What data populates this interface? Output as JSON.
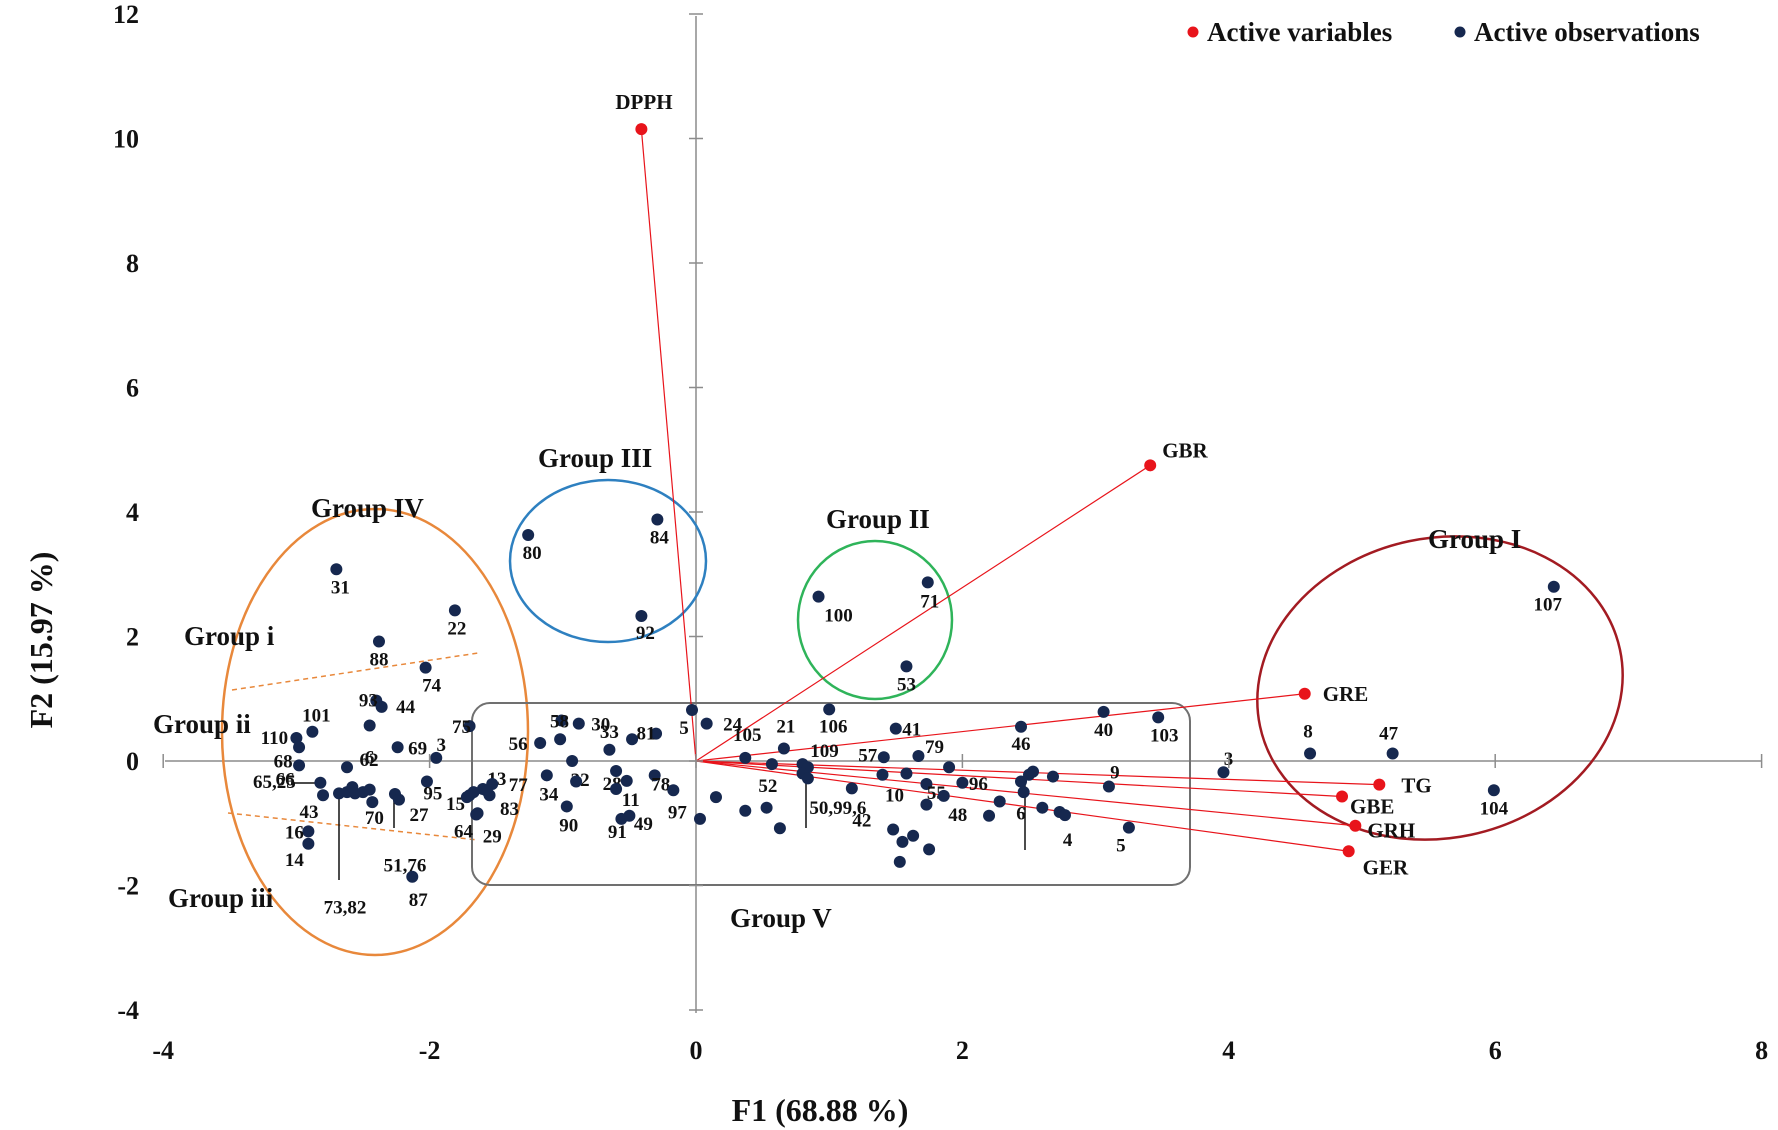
{
  "chart_data": {
    "type": "scatter",
    "xlabel": "F1 (68.88 %)",
    "ylabel": "F2 (15.97 %)",
    "xlim": [
      -4,
      8
    ],
    "ylim": [
      -4,
      12
    ],
    "xticks": [
      "-4",
      "-2",
      "0",
      "2",
      "4",
      "6",
      "8"
    ],
    "yticks": [
      "-4",
      "-2",
      "0",
      "2",
      "4",
      "6",
      "8",
      "10",
      "12"
    ],
    "grid": false,
    "legend": {
      "position": "top-right",
      "entries": [
        {
          "name": "Active variables",
          "color": "#e8141b"
        },
        {
          "name": "Active observations",
          "color": "#16284f"
        }
      ]
    },
    "colors": {
      "variables": "#e8141b",
      "observations": "#16284f",
      "axes": "#808080"
    },
    "active_variables": [
      {
        "label": "DPPH",
        "x": -0.41,
        "y": 10.15
      },
      {
        "label": "GBR",
        "x": 3.41,
        "y": 4.75
      },
      {
        "label": "GRE",
        "x": 4.57,
        "y": 1.08
      },
      {
        "label": "TG",
        "x": 5.13,
        "y": -0.38
      },
      {
        "label": "GBE",
        "x": 4.85,
        "y": -0.57
      },
      {
        "label": "GRH",
        "x": 4.95,
        "y": -1.04
      },
      {
        "label": "GER",
        "x": 4.9,
        "y": -1.45
      }
    ],
    "active_observations": [
      {
        "label": "31",
        "x": -2.7,
        "y": 3.08
      },
      {
        "label": "22",
        "x": -1.81,
        "y": 2.42
      },
      {
        "label": "88",
        "x": -2.38,
        "y": 1.92
      },
      {
        "label": "74",
        "x": -2.03,
        "y": 1.5
      },
      {
        "label": "93",
        "x": -2.4,
        "y": 0.97
      },
      {
        "label": "44",
        "x": -2.36,
        "y": 0.87
      },
      {
        "label": "101",
        "x": -2.88,
        "y": 0.47
      },
      {
        "label": "6",
        "x": -2.45,
        "y": 0.57
      },
      {
        "label": "69",
        "x": -2.24,
        "y": 0.22
      },
      {
        "label": "75",
        "x": -1.7,
        "y": 0.56
      },
      {
        "label": "110",
        "x": -3.0,
        "y": 0.37
      },
      {
        "label": "68",
        "x": -2.98,
        "y": 0.22
      },
      {
        "label": "66",
        "x": -2.98,
        "y": -0.07
      },
      {
        "label": "62",
        "x": -2.62,
        "y": -0.1
      },
      {
        "label": "65,25",
        "x": -2.82,
        "y": -0.35
      },
      {
        "label": "43",
        "x": -2.8,
        "y": -0.55
      },
      {
        "label": "70",
        "x": -2.43,
        "y": -0.66
      },
      {
        "label": "27",
        "x": -2.26,
        "y": -0.53
      },
      {
        "label": "95",
        "x": -2.02,
        "y": -0.33
      },
      {
        "label": "3",
        "x": -1.95,
        "y": 0.05
      },
      {
        "label": "15",
        "x": -1.7,
        "y": -0.55
      },
      {
        "label": "13",
        "x": -1.6,
        "y": -0.45
      },
      {
        "label": "77",
        "x": -1.53,
        "y": -0.37
      },
      {
        "label": "83",
        "x": -1.55,
        "y": -0.55
      },
      {
        "label": "64",
        "x": -1.64,
        "y": -0.84
      },
      {
        "label": "29",
        "x": -1.65,
        "y": -0.86
      },
      {
        "label": "16",
        "x": -2.91,
        "y": -1.13
      },
      {
        "label": "14",
        "x": -2.91,
        "y": -1.33
      },
      {
        "label": "51,76",
        "x": -2.23,
        "y": -0.62
      },
      {
        "label": "73,82",
        "x": -2.68,
        "y": -0.52
      },
      {
        "label": "87",
        "x": -2.13,
        "y": -1.86
      },
      {
        "label": "80",
        "x": -1.26,
        "y": 3.63
      },
      {
        "label": "84",
        "x": -0.29,
        "y": 3.88
      },
      {
        "label": "92",
        "x": -0.41,
        "y": 2.33
      },
      {
        "label": "100",
        "x": 0.92,
        "y": 2.64
      },
      {
        "label": "71",
        "x": 1.74,
        "y": 2.87
      },
      {
        "label": "53",
        "x": 1.58,
        "y": 1.52
      },
      {
        "label": "107",
        "x": 6.44,
        "y": 2.8
      },
      {
        "label": "40",
        "x": 3.06,
        "y": 0.79
      },
      {
        "label": "103",
        "x": 3.47,
        "y": 0.7
      },
      {
        "label": "46",
        "x": 2.44,
        "y": 0.55
      },
      {
        "label": "8",
        "x": 4.61,
        "y": 0.12
      },
      {
        "label": "47",
        "x": 5.23,
        "y": 0.12
      },
      {
        "label": "3",
        "x": 3.96,
        "y": -0.18
      },
      {
        "label": "104",
        "x": 5.99,
        "y": -0.47
      },
      {
        "label": "106",
        "x": 1.0,
        "y": 0.83
      },
      {
        "label": "41",
        "x": 1.5,
        "y": 0.52
      },
      {
        "label": "24",
        "x": 0.08,
        "y": 0.6
      },
      {
        "label": "5",
        "x": -0.03,
        "y": 0.82
      },
      {
        "label": "21",
        "x": 0.66,
        "y": 0.2
      },
      {
        "label": "105",
        "x": 0.37,
        "y": 0.05
      },
      {
        "label": "109",
        "x": 0.8,
        "y": -0.05
      },
      {
        "label": "57",
        "x": 1.41,
        "y": 0.06
      },
      {
        "label": "79",
        "x": 1.67,
        "y": 0.08
      },
      {
        "label": "52",
        "x": 0.57,
        "y": -0.05
      },
      {
        "label": "81",
        "x": -0.3,
        "y": 0.44
      },
      {
        "label": "58",
        "x": -1.01,
        "y": 0.65
      },
      {
        "label": "30",
        "x": -0.88,
        "y": 0.6
      },
      {
        "label": "33",
        "x": -0.65,
        "y": 0.18
      },
      {
        "label": "56",
        "x": -1.17,
        "y": 0.29
      },
      {
        "label": "34",
        "x": -1.12,
        "y": -0.23
      },
      {
        "label": "32",
        "x": -0.93,
        "y": 0.0
      },
      {
        "label": "28",
        "x": -0.6,
        "y": -0.16
      },
      {
        "label": "11",
        "x": -0.52,
        "y": -0.32
      },
      {
        "label": "78",
        "x": -0.31,
        "y": -0.23
      },
      {
        "label": "90",
        "x": -0.97,
        "y": -0.73
      },
      {
        "label": "91",
        "x": -0.56,
        "y": -0.93
      },
      {
        "label": "49",
        "x": -0.5,
        "y": -0.88
      },
      {
        "label": "97",
        "x": -0.17,
        "y": -0.47
      },
      {
        "label": "50,99,6",
        "x": 0.84,
        "y": -0.1
      },
      {
        "label": "42",
        "x": 1.17,
        "y": -0.44
      },
      {
        "label": "10",
        "x": 1.4,
        "y": -0.22
      },
      {
        "label": "55",
        "x": 1.73,
        "y": -0.37
      },
      {
        "label": "48",
        "x": 1.86,
        "y": -0.56
      },
      {
        "label": "96",
        "x": 2.0,
        "y": -0.35
      },
      {
        "label": "6",
        "x": 2.44,
        "y": -0.33
      },
      {
        "label": "9",
        "x": 3.1,
        "y": -0.41
      },
      {
        "label": "4",
        "x": 2.73,
        "y": -0.82
      },
      {
        "label": "5",
        "x": 3.25,
        "y": -1.07
      }
    ]
  }
}
